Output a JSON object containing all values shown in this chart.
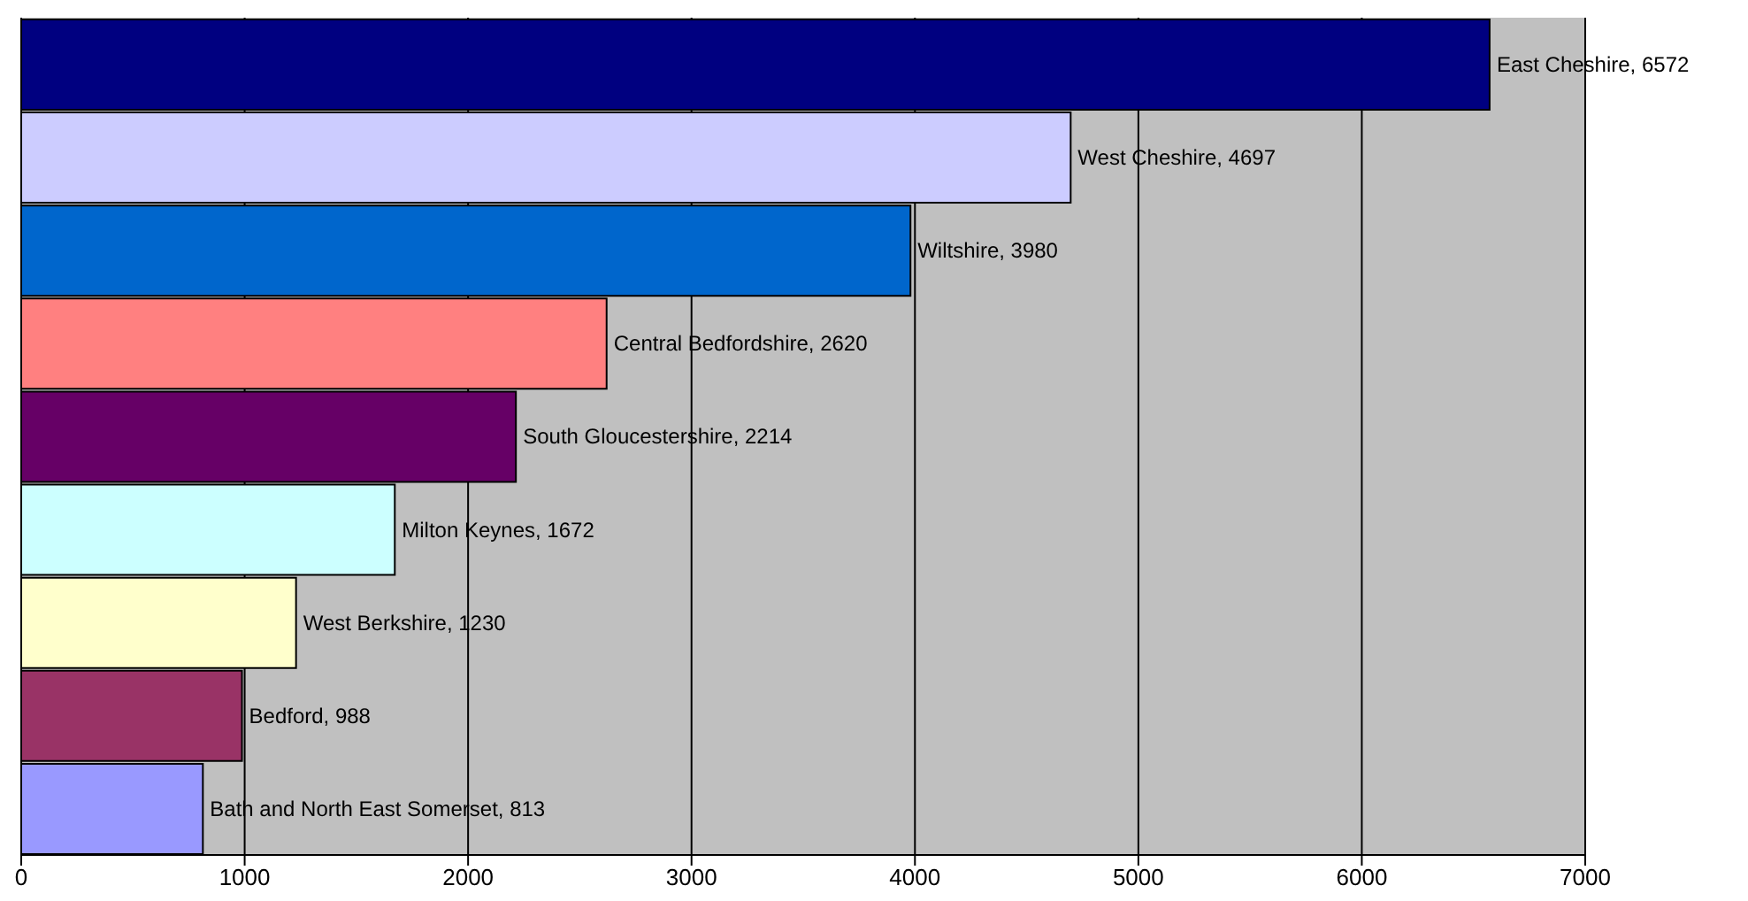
{
  "chart_data": {
    "type": "bar",
    "orientation": "horizontal",
    "categories": [
      null,
      null,
      null,
      null,
      null,
      null,
      null,
      null,
      null
    ],
    "values": [
      6572,
      4697,
      3980,
      2620,
      2214,
      1672,
      1230,
      988,
      813
    ],
    "colors": [
      "#000080",
      "#ccccff",
      "#0066cc",
      "#ff8080",
      "#660066",
      "#ccffff",
      "#ffffcc",
      "#993366",
      "#9999ff"
    ],
    "value_labels": [
      "East Cheshire, 6572",
      "West Cheshire, 4697",
      "Wiltshire, 3980",
      "Central Bedfordshire, 2620",
      "South Gloucestershire, 2214",
      "Milton Keynes, 1672",
      "West Berkshire, 1230",
      "Bedford, 988",
      "Bath and North East Somerset, 813"
    ],
    "xlim": [
      0,
      7000
    ],
    "xticks": [
      0,
      1000,
      2000,
      3000,
      4000,
      5000,
      6000,
      7000
    ],
    "grid": "x",
    "tick_labels": "x",
    "legend": false
  }
}
